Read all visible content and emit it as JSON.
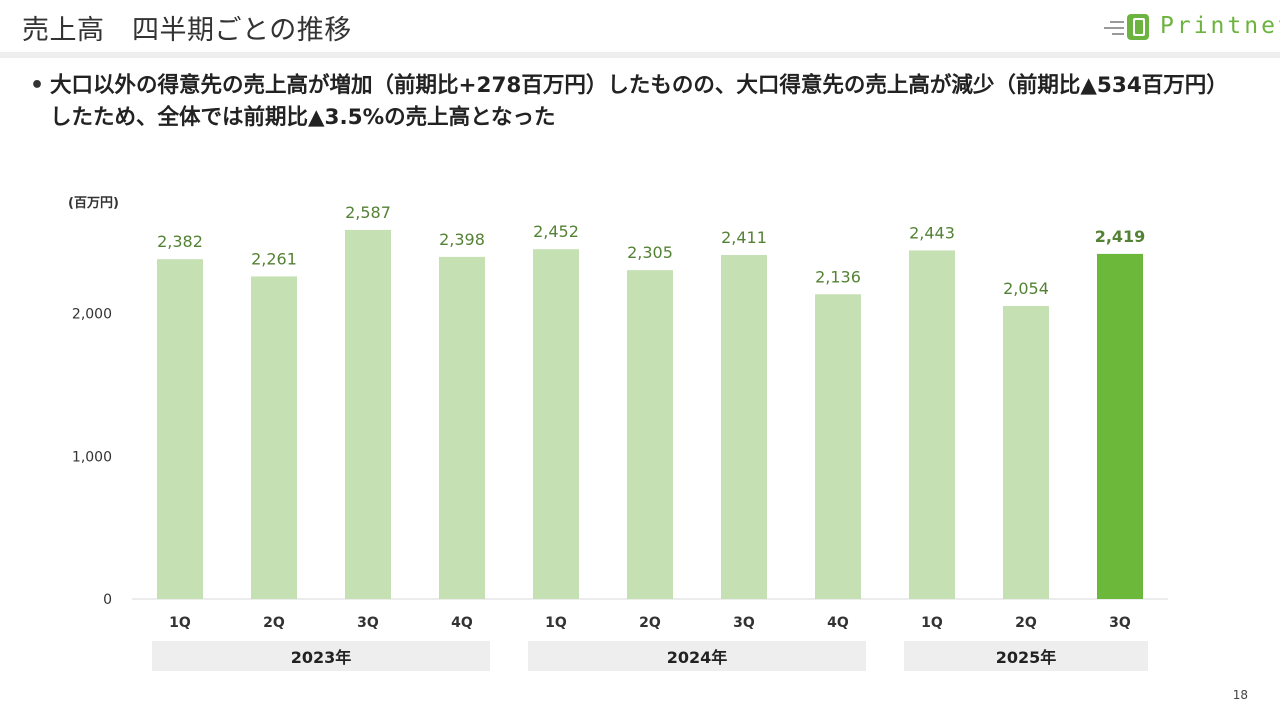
{
  "header": {
    "title": "売上高　四半期ごとの推移",
    "logo_text": "Printnet",
    "logo_icon": "printnet-logo-icon"
  },
  "summary": {
    "bullet": "•",
    "text": "大口以外の得意先の売上高が増加（前期比+278百万円）したものの、大口得意先の売上高が減少（前期比▲534百万円）したため、全体では前期比▲3.5%の売上高となった"
  },
  "page_number": "18",
  "colors": {
    "bar": "#c5e0b3",
    "bar_highlight": "#6cb83a",
    "label": "#548235",
    "axis_text": "#333333",
    "year_band": "#eeeeee",
    "logo_green": "#6db33f"
  },
  "chart_data": {
    "type": "bar",
    "unit_label": "(百万円)",
    "categories": [
      "1Q",
      "2Q",
      "3Q",
      "4Q",
      "1Q",
      "2Q",
      "3Q",
      "4Q",
      "1Q",
      "2Q",
      "3Q"
    ],
    "values": [
      2382,
      2261,
      2587,
      2398,
      2452,
      2305,
      2411,
      2136,
      2443,
      2054,
      2419
    ],
    "value_labels": [
      "2,382",
      "2,261",
      "2,587",
      "2,398",
      "2,452",
      "2,305",
      "2,411",
      "2,136",
      "2,443",
      "2,054",
      "2,419"
    ],
    "highlight_index": 10,
    "ylim": [
      0,
      3000
    ],
    "yticks": [
      0,
      1000,
      2000
    ],
    "ytick_labels": [
      "0",
      "1,000",
      "2,000"
    ],
    "groups": [
      {
        "label": "2023年",
        "start": 0,
        "end": 3
      },
      {
        "label": "2024年",
        "start": 4,
        "end": 7
      },
      {
        "label": "2025年",
        "start": 8,
        "end": 10
      }
    ],
    "grid": false,
    "legend": "none"
  }
}
